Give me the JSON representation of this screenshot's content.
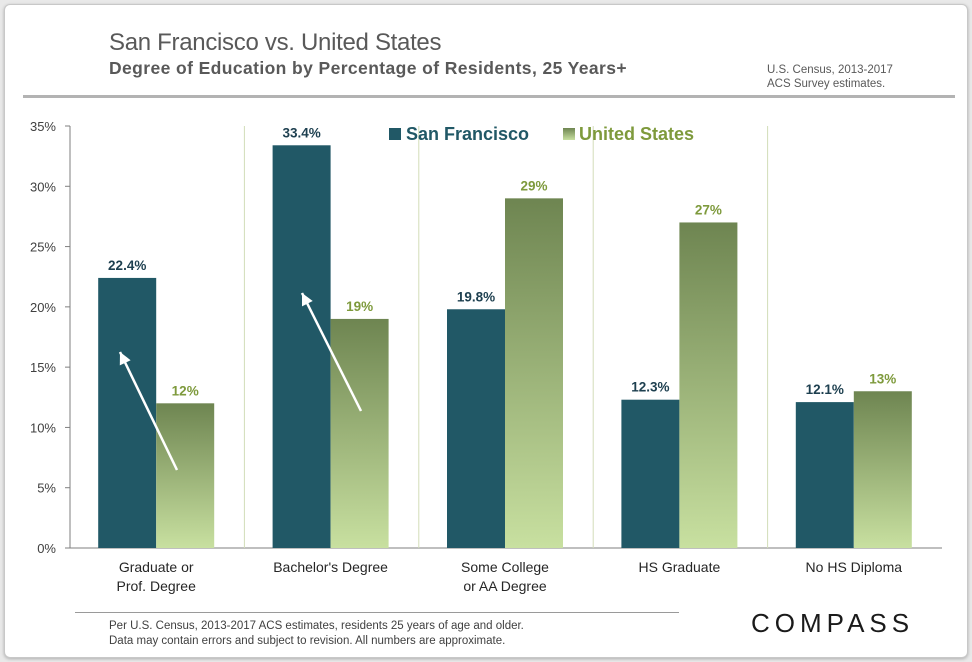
{
  "header": {
    "title": "San Francisco vs. United States",
    "subtitle": "Degree of Education by Percentage of Residents, 25 Years+",
    "source_line1": "U.S. Census, 2013-2017",
    "source_line2": "ACS Survey estimates."
  },
  "footer": {
    "note_line1": "Per U.S. Census, 2013-2017 ACS estimates,  residents 25 years of age and older.",
    "note_line2": "Data may contain errors and subject to revision. All numbers are approximate.",
    "logo": "COMPASS"
  },
  "colors": {
    "sf": "#215866",
    "us_top": "#6e8551",
    "us_bottom": "#c8e0a0",
    "sf_label": "#1d3f4f",
    "us_label": "#7e9a3c"
  },
  "chart_data": {
    "type": "bar",
    "title": "Degree of Education by Percentage of Residents, 25 Years+",
    "xlabel": "",
    "ylabel": "",
    "ylim": [
      0,
      35
    ],
    "yticks": [
      "0%",
      "5%",
      "10%",
      "15%",
      "20%",
      "25%",
      "30%",
      "35%"
    ],
    "categories": [
      [
        "Graduate or",
        "Prof. Degree"
      ],
      [
        "Bachelor's Degree"
      ],
      [
        "Some College",
        "or AA Degree"
      ],
      [
        "HS Graduate"
      ],
      [
        "No HS Diploma"
      ]
    ],
    "series": [
      {
        "name": "San Francisco",
        "values": [
          22.4,
          33.4,
          19.8,
          12.3,
          12.1
        ],
        "labels": [
          "22.4%",
          "33.4%",
          "19.8%",
          "12.3%",
          "12.1%"
        ]
      },
      {
        "name": "United States",
        "values": [
          12,
          19,
          29,
          27,
          13
        ],
        "labels": [
          "12%",
          "19%",
          "29%",
          "27%",
          "13%"
        ]
      }
    ],
    "legend": "top-center",
    "grid": false,
    "annotations": [
      "arrow from United States bar to San Francisco bar (Graduate or Prof. Degree)",
      "arrow from United States bar to San Francisco bar (Bachelor's Degree)"
    ]
  }
}
